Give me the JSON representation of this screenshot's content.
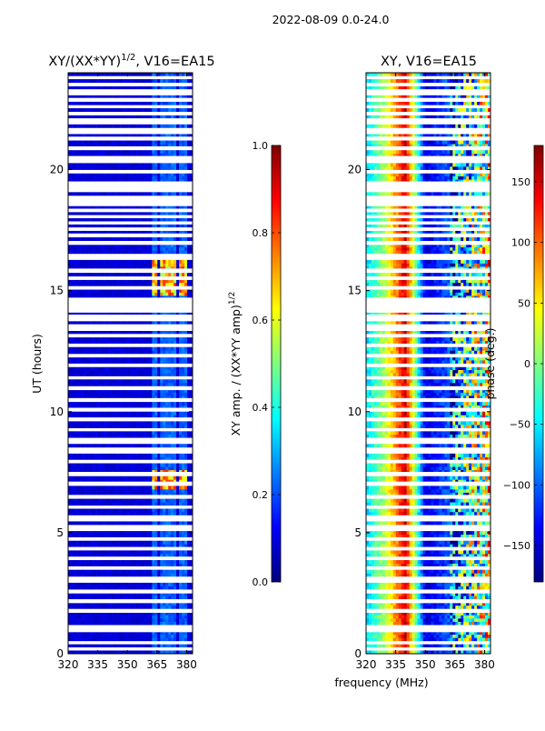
{
  "figure": {
    "suptitle": "2022-08-09 0.0-24.0",
    "xlabel_shared": "frequency (MHz)"
  },
  "colormap": [
    "#00007f",
    "#0000ff",
    "#007fff",
    "#00ffff",
    "#7fff7f",
    "#ffff00",
    "#ff7f00",
    "#ff0000",
    "#7f0000"
  ],
  "chart_data": [
    {
      "type": "heatmap",
      "title_prefix": "XY/(XX*YY)",
      "title_sup": "1/2",
      "title_suffix": ", V16=EA15",
      "xlabel": "",
      "ylabel": "UT (hours)",
      "xlim": [
        320,
        383
      ],
      "ylim": [
        0,
        24
      ],
      "xticks": [
        320,
        335,
        350,
        365,
        380
      ],
      "yticks": [
        0,
        5,
        10,
        15,
        20
      ],
      "colorbar": {
        "label": "XY amp. / (XX*YY amp)",
        "label_sup": "1/2",
        "range": [
          0.0,
          1.0
        ],
        "ticks": [
          "0.0",
          "0.2",
          "0.4",
          "0.6",
          "0.8",
          "1.0"
        ],
        "tick_values": [
          0.0,
          0.2,
          0.4,
          0.6,
          0.8,
          1.0
        ]
      },
      "background_value": 0.06,
      "bright_channels_MHz": [
        364,
        369,
        373,
        378
      ],
      "high_amplitude_bands_hours": [
        [
          14.8,
          16.3
        ],
        [
          6.8,
          7.6
        ]
      ],
      "peak_value": 0.85
    },
    {
      "type": "heatmap",
      "title": "XY, V16=EA15",
      "xlabel": "frequency (MHz)",
      "ylabel": "",
      "xlim": [
        320,
        383
      ],
      "ylim": [
        0,
        24
      ],
      "xticks": [
        320,
        335,
        350,
        365,
        380
      ],
      "yticks": [
        0,
        5,
        10,
        15,
        20
      ],
      "colorbar": {
        "label": "phase (deg.)",
        "range": [
          -180,
          180
        ],
        "ticks": [
          "−150",
          "−100",
          "−50",
          "0",
          "50",
          "100",
          "150"
        ],
        "tick_values": [
          -150,
          -100,
          -50,
          0,
          50,
          100,
          150
        ]
      },
      "phase_gradient_MHz_to_deg": [
        [
          320,
          -60
        ],
        [
          330,
          20
        ],
        [
          340,
          150
        ],
        [
          350,
          -150
        ],
        [
          363,
          -100
        ],
        [
          383,
          40
        ]
      ]
    }
  ],
  "flagged_gaps_hours": [
    0.2,
    0.45,
    0.95,
    1.1,
    1.75,
    2.15,
    2.55,
    3.0,
    3.1,
    3.55,
    3.95,
    4.35,
    4.75,
    5.2,
    5.6,
    6.05,
    6.5,
    7.05,
    7.45,
    7.95,
    8.4,
    8.8,
    9.25,
    9.7,
    10.1,
    10.5,
    10.95,
    11.4,
    11.9,
    12.3,
    12.75,
    13.15,
    13.45,
    13.55,
    13.85,
    13.95,
    14.15,
    14.4,
    14.65,
    15.1,
    15.5,
    15.85,
    16.4,
    16.95,
    17.3,
    17.55,
    17.8,
    18.05,
    18.3,
    18.55,
    18.8,
    19.2,
    19.3,
    19.45,
    19.9,
    20.35,
    20.5,
    20.9,
    21.3,
    21.6,
    22.0,
    22.3,
    22.6,
    22.9,
    23.2,
    23.5,
    23.8
  ]
}
